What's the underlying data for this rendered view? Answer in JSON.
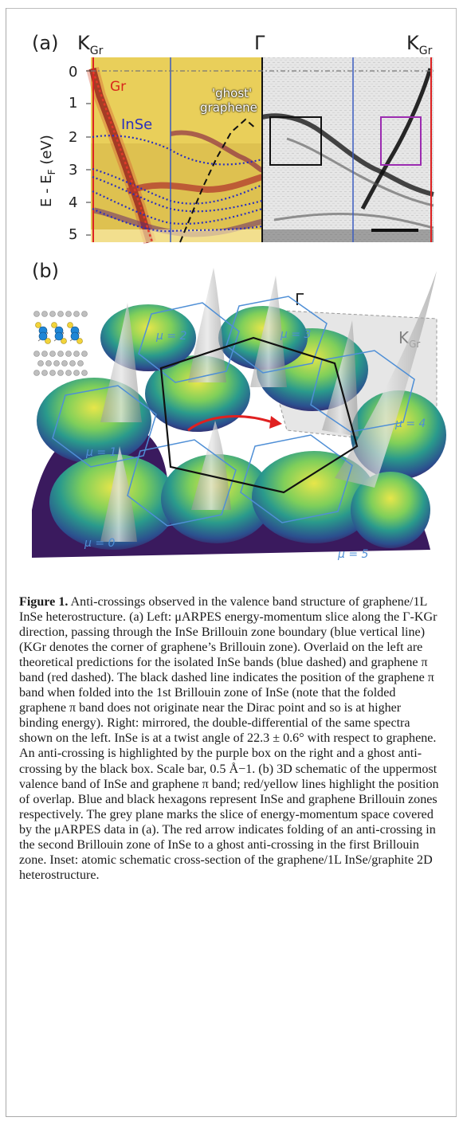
{
  "panel_a": {
    "label": "(a)",
    "k_left": "K",
    "k_sub": "Gr",
    "gamma": "Γ",
    "k_right": "K",
    "ylabel_prefix": "E - E",
    "ylabel_sub": "F",
    "ylabel_suffix": " (eV)",
    "yticks": [
      "0",
      "1",
      "2",
      "3",
      "4",
      "5"
    ],
    "label_gr": "Gr",
    "label_inse": "InSe",
    "label_ghost_1": "'ghost'",
    "label_ghost_2": "graphene"
  },
  "panel_b": {
    "label": "(b)",
    "gamma": "Γ",
    "k": "K",
    "k_sub": "Gr",
    "mu_labels": [
      "μ = 0",
      "μ = 1",
      "μ = 2",
      "μ = 3",
      "μ = 4",
      "μ = 5"
    ]
  },
  "caption": {
    "fig_label": "Figure 1.",
    "text": " Anti-crossings observed in the valence band structure of graphene/1L InSe heterostructure. (a) Left: μARPES energy-momentum slice along the Γ-KGr direction, passing through the InSe Brillouin zone boundary (blue vertical line) (KGr denotes the corner of graphene’s Brillouin zone). Overlaid on the left are theoretical predictions for the isolated InSe bands (blue dashed) and graphene π band (red dashed). The black dashed line indicates the position of the graphene π band when folded into the 1st Brillouin zone of InSe (note that the folded graphene π band does not originate near the Dirac point and so is at higher binding energy). Right: mirrored, the double-differential of the same spectra shown on the left. InSe is at a twist angle of 22.3 ± 0.6° with respect to graphene. An anti-crossing is highlighted by the purple box on the right and a ghost anti-crossing by the black box. Scale bar, 0.5 Å−1. (b) 3D schematic of the uppermost valence band of InSe and graphene π band; red/yellow lines highlight the position of overlap. Blue and black hexagons represent InSe and graphene Brillouin zones respectively. The grey plane marks the slice of energy-momentum space covered by the μARPES data in (a). The red arrow indicates folding of an anti-crossing in the second Brillouin zone of InSe to a ghost anti-crossing in the first Brillouin zone. Inset: atomic schematic cross-section of the graphene/1L InSe/graphite 2D heterostructure."
  }
}
